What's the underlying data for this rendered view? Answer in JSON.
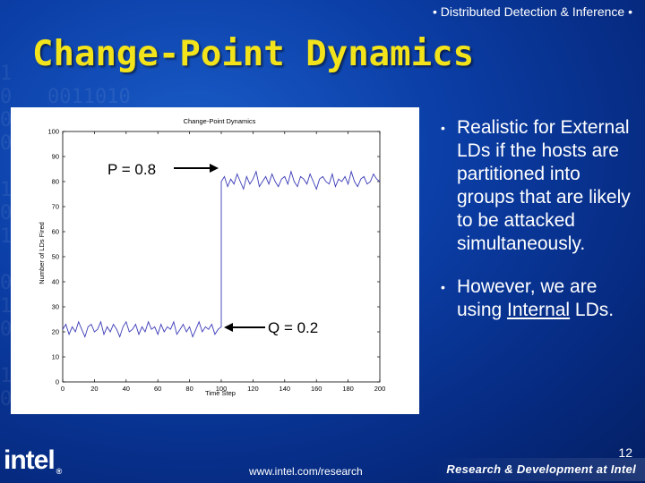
{
  "header": {
    "tag": "• Distributed Detection & Inference •"
  },
  "slide": {
    "title": "Change-Point Dynamics",
    "page_number": "12"
  },
  "bullets": {
    "item1": "Realistic for External LDs if the hosts are partitioned into groups that are likely to be attacked simultaneously.",
    "item2_prefix": "However, we are using ",
    "item2_underlined": "Internal",
    "item2_suffix": " LDs."
  },
  "annotations": {
    "p_label": "P = 0.8",
    "q_label": "Q = 0.2"
  },
  "footer": {
    "url": "www.intel.com/research",
    "rd": "Research & Development at Intel",
    "logo": "intel",
    "logo_reg": "®"
  },
  "colors": {
    "title": "#f2e31a",
    "series": "#3b3bb8",
    "background": "#0b3ea6"
  },
  "chart_data": {
    "type": "line",
    "title": "Change-Point Dynamics",
    "xlabel": "Time Step",
    "ylabel": "Number of LDs Fired",
    "xlim": [
      0,
      200
    ],
    "ylim": [
      0,
      100
    ],
    "x_ticks": [
      "0",
      "20",
      "40",
      "60",
      "80",
      "100",
      "120",
      "140",
      "160",
      "180",
      "200"
    ],
    "y_ticks": [
      "0",
      "10",
      "20",
      "30",
      "40",
      "50",
      "60",
      "70",
      "80",
      "90",
      "100"
    ],
    "change_point": 100,
    "series": [
      {
        "x": [
          0,
          2,
          4,
          6,
          8,
          10,
          12,
          14,
          16,
          18,
          20,
          22,
          24,
          26,
          28,
          30,
          32,
          34,
          36,
          38,
          40,
          42,
          44,
          46,
          48,
          50,
          52,
          54,
          56,
          58,
          60,
          62,
          64,
          66,
          68,
          70,
          72,
          74,
          76,
          78,
          80,
          82,
          84,
          86,
          88,
          90,
          92,
          94,
          96,
          98,
          100,
          100,
          102,
          104,
          106,
          108,
          110,
          112,
          114,
          116,
          118,
          120,
          122,
          124,
          126,
          128,
          130,
          132,
          134,
          136,
          138,
          140,
          142,
          144,
          146,
          148,
          150,
          152,
          154,
          156,
          158,
          160,
          162,
          164,
          166,
          168,
          170,
          172,
          174,
          176,
          178,
          180,
          182,
          184,
          186,
          188,
          190,
          192,
          194,
          196,
          198,
          200
        ],
        "y": [
          21,
          23,
          19,
          22,
          20,
          24,
          21,
          18,
          22,
          23,
          20,
          21,
          24,
          19,
          22,
          20,
          23,
          21,
          18,
          22,
          24,
          20,
          21,
          23,
          19,
          22,
          20,
          24,
          21,
          22,
          19,
          23,
          20,
          22,
          21,
          24,
          19,
          21,
          23,
          20,
          22,
          18,
          21,
          24,
          20,
          22,
          21,
          23,
          19,
          21,
          22,
          80,
          82,
          78,
          81,
          79,
          83,
          80,
          77,
          82,
          79,
          81,
          84,
          78,
          80,
          82,
          79,
          83,
          80,
          78,
          81,
          82,
          79,
          84,
          80,
          78,
          82,
          81,
          79,
          83,
          80,
          77,
          81,
          82,
          80,
          79,
          83,
          78,
          81,
          80,
          82,
          79,
          84,
          80,
          78,
          81,
          82,
          79,
          80,
          83,
          81,
          80
        ]
      }
    ]
  }
}
